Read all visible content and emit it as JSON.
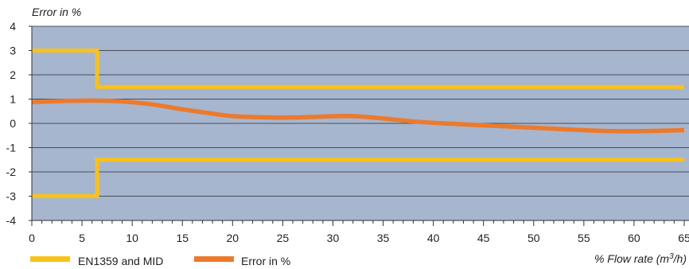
{
  "chart_data": {
    "type": "line",
    "title": "",
    "ylabel": "Error in %",
    "xlabel_prefix": "% Flow rate (m",
    "xlabel_sup": "3",
    "xlabel_suffix": "/h)",
    "xlim": [
      0,
      65
    ],
    "ylim": [
      -4,
      4
    ],
    "x_ticks": [
      0,
      5,
      10,
      15,
      20,
      25,
      30,
      35,
      40,
      45,
      50,
      55,
      60,
      65
    ],
    "y_ticks": [
      4,
      3,
      2,
      1,
      0,
      -1,
      -2,
      -3,
      -4
    ],
    "grid": "horizontal",
    "legend_position": "bottom-left",
    "plot_background": "#a7b6cf",
    "series": [
      {
        "name": "EN1359 and MID",
        "color": "#f9c21a",
        "role": "upper-limit",
        "x": [
          0,
          6.5,
          6.5,
          65
        ],
        "y": [
          3,
          3,
          1.5,
          1.5
        ]
      },
      {
        "name": "",
        "color": "#f9c21a",
        "role": "lower-limit",
        "x": [
          0,
          6.5,
          6.5,
          65
        ],
        "y": [
          -3,
          -3,
          -1.5,
          -1.5
        ]
      },
      {
        "name": "Error in %",
        "color": "#ec7a2c",
        "role": "measured",
        "x": [
          0,
          3,
          6,
          9,
          12,
          15,
          18,
          20,
          23,
          26,
          29,
          32,
          35,
          38,
          41,
          44,
          47,
          50,
          53,
          56,
          58,
          61,
          65
        ],
        "y": [
          0.88,
          0.92,
          0.94,
          0.9,
          0.78,
          0.58,
          0.4,
          0.3,
          0.25,
          0.24,
          0.28,
          0.3,
          0.2,
          0.08,
          0.0,
          -0.06,
          -0.12,
          -0.18,
          -0.24,
          -0.3,
          -0.32,
          -0.32,
          -0.28
        ]
      }
    ]
  }
}
